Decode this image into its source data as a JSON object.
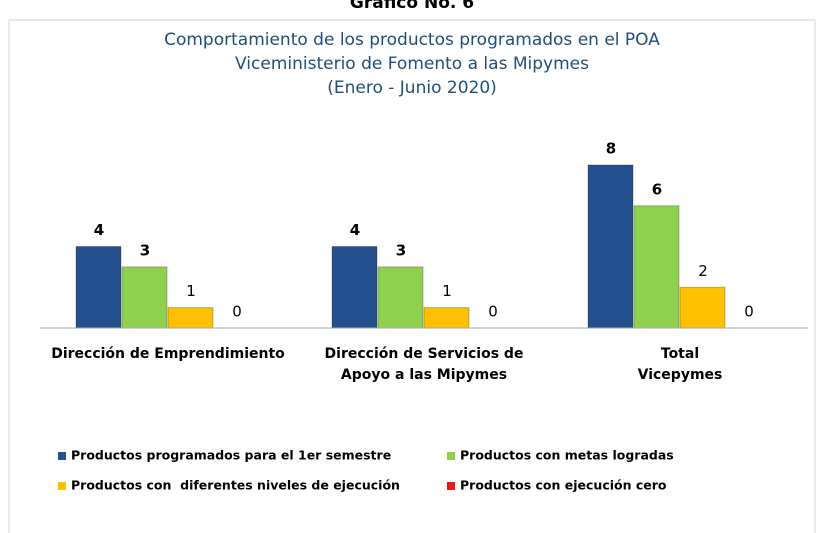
{
  "page_heading": "Gráfico No. 6",
  "chart_data": {
    "type": "bar",
    "title": [
      "Comportamiento de los productos programados en el POA",
      "Viceministerio de Fomento a las Mipymes",
      "(Enero - Junio 2020)"
    ],
    "categories": [
      [
        "Dirección de Emprendimiento"
      ],
      [
        "Dirección de Servicios de",
        "Apoyo a las Mipymes"
      ],
      [
        "Total",
        "Vicepymes"
      ]
    ],
    "series": [
      {
        "name": "Productos programados para el 1er semestre",
        "color": "#24508f",
        "values": [
          4,
          4,
          8
        ]
      },
      {
        "name": "Productos con metas logradas",
        "color": "#8fd14f",
        "values": [
          3,
          3,
          6
        ]
      },
      {
        "name": "Productos con  diferentes niveles de ejecución",
        "color": "#ffc000",
        "values": [
          1,
          1,
          2
        ]
      },
      {
        "name": "Productos con ejecución cero",
        "color": "#e31a1c",
        "values": [
          0,
          0,
          0
        ]
      }
    ],
    "ylim": [
      0,
      8
    ]
  }
}
